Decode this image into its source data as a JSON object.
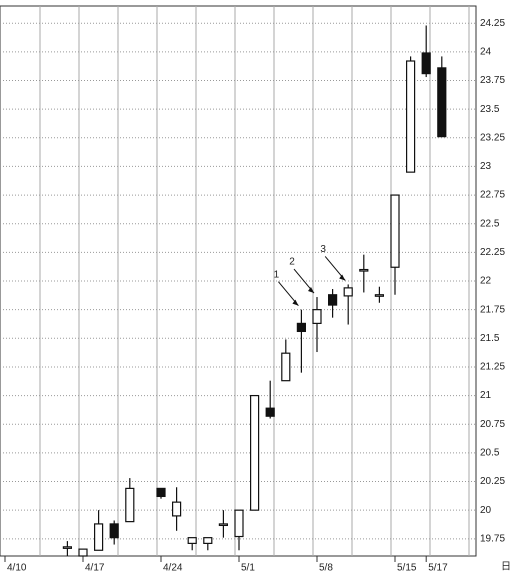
{
  "chart_data": {
    "type": "candlestick",
    "categories": [
      "4/10",
      null,
      null,
      null,
      null,
      "4/17",
      null,
      null,
      null,
      null,
      "4/24",
      null,
      null,
      null,
      null,
      "5/1",
      null,
      null,
      null,
      null,
      "5/8",
      null,
      null,
      null,
      null,
      "5/15",
      null,
      "5/17",
      null
    ],
    "open": [
      null,
      null,
      null,
      null,
      19.68,
      19.6,
      19.65,
      19.88,
      19.9,
      null,
      20.19,
      19.95,
      19.71,
      19.71,
      19.88,
      19.77,
      20.0,
      20.89,
      21.13,
      21.63,
      21.63,
      21.88,
      21.87,
      22.1,
      21.88,
      22.12,
      22.95,
      23.99,
      23.86
    ],
    "high": [
      null,
      null,
      null,
      null,
      19.73,
      19.66,
      20.0,
      19.91,
      20.28,
      null,
      20.19,
      20.2,
      19.76,
      19.76,
      20.0,
      20.0,
      21.0,
      21.13,
      21.49,
      21.75,
      21.86,
      21.93,
      21.97,
      22.23,
      21.95,
      22.75,
      23.96,
      24.23,
      23.96
    ],
    "low": [
      null,
      null,
      null,
      null,
      19.6,
      19.6,
      19.65,
      19.7,
      19.9,
      null,
      20.1,
      19.82,
      19.65,
      19.65,
      19.76,
      19.65,
      20.0,
      20.8,
      21.13,
      21.2,
      21.38,
      21.68,
      21.62,
      21.9,
      21.81,
      21.88,
      22.95,
      23.78,
      23.26
    ],
    "close": [
      null,
      null,
      null,
      null,
      19.68,
      19.66,
      19.88,
      19.76,
      20.19,
      null,
      20.12,
      20.07,
      19.76,
      19.76,
      19.88,
      20.0,
      21.0,
      20.82,
      21.37,
      21.56,
      21.75,
      21.79,
      21.94,
      22.1,
      21.88,
      22.75,
      23.92,
      23.81,
      23.26
    ],
    "x_unit": "日",
    "annotations": [
      "1",
      "2",
      "3"
    ],
    "ylim": [
      19.6,
      24.4
    ],
    "yticks": [
      19.75,
      20,
      20.25,
      20.5,
      20.75,
      21,
      21.25,
      21.5,
      21.75,
      22,
      22.25,
      22.5,
      22.75,
      23,
      23.25,
      23.5,
      23.75,
      24,
      24.25
    ],
    "up_color": "#ffffff",
    "down_color": "#111111",
    "grid": true
  }
}
